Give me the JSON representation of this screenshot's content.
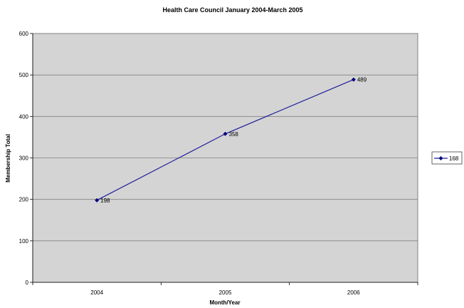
{
  "chart_data": {
    "type": "line",
    "title": "Health Care Council January 2004-March 2005",
    "xlabel": "Month/Year",
    "ylabel": "Membership Total",
    "categories": [
      "2004",
      "2005",
      "2006"
    ],
    "series": [
      {
        "name": "168",
        "values": [
          198,
          358,
          489
        ],
        "color": "#1f1f9a"
      }
    ],
    "data_labels": [
      "198",
      "358",
      "489"
    ],
    "ylim": [
      0,
      600
    ],
    "yticks": [
      0,
      100,
      200,
      300,
      400,
      500,
      600
    ],
    "grid": true,
    "legend_position": "right",
    "plot_background": "#d4d4d4"
  }
}
